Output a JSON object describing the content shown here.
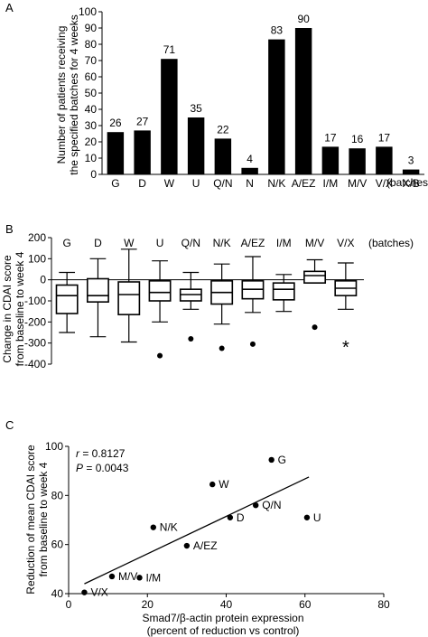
{
  "panels": {
    "a": {
      "letter": "A"
    },
    "b": {
      "letter": "B"
    },
    "c": {
      "letter": "C"
    }
  },
  "chart_data": [
    {
      "type": "bar",
      "panel": "A",
      "ylabel": "Number of patients receiving the specified batches for 4 weeks",
      "ylabel_lines": [
        "Number of patients receiving",
        "the specified batches for 4 weeks"
      ],
      "xlabel": "(batches)",
      "categories": [
        "G",
        "D",
        "W",
        "U",
        "Q/N",
        "N",
        "N/K",
        "A/EZ",
        "I/M",
        "M/V",
        "V/X",
        "X/B"
      ],
      "values": [
        26,
        27,
        71,
        35,
        22,
        4,
        83,
        90,
        17,
        16,
        17,
        3
      ],
      "data_labels": [
        "26",
        "27",
        "71",
        "35",
        "22",
        "4",
        "83",
        "90",
        "17",
        "16",
        "17",
        "3"
      ],
      "ylim": [
        0,
        100
      ],
      "yticks": [
        "0",
        "10",
        "20",
        "30",
        "40",
        "50",
        "60",
        "70",
        "80",
        "90",
        "100"
      ],
      "bar_color": "#000000",
      "grid": false
    },
    {
      "type": "box",
      "panel": "B",
      "ylabel": "Change in CDAI score from baseline to week 4",
      "ylabel_lines": [
        "Change in CDAI score",
        "from baseline to week 4"
      ],
      "xlabel": "(batches)",
      "categories": [
        "G",
        "D",
        "W",
        "U",
        "Q/N",
        "N/K",
        "A/EZ",
        "I/M",
        "M/V",
        "V/X"
      ],
      "boxes": [
        {
          "min": -250,
          "q1": -160,
          "median": -75,
          "q3": -25,
          "max": 35,
          "outliers": []
        },
        {
          "min": -270,
          "q1": -105,
          "median": -75,
          "q3": 5,
          "max": 100,
          "outliers": []
        },
        {
          "min": -295,
          "q1": -165,
          "median": -70,
          "q3": -10,
          "max": 145,
          "outliers": []
        },
        {
          "min": -200,
          "q1": -100,
          "median": -60,
          "q3": -5,
          "max": 90,
          "outliers": [
            -360
          ]
        },
        {
          "min": -140,
          "q1": -100,
          "median": -70,
          "q3": -45,
          "max": 35,
          "outliers": [
            -280
          ]
        },
        {
          "min": -210,
          "q1": -115,
          "median": -60,
          "q3": -5,
          "max": 75,
          "outliers": [
            -325
          ]
        },
        {
          "min": -155,
          "q1": -90,
          "median": -45,
          "q3": -5,
          "max": 110,
          "outliers": [
            -305
          ]
        },
        {
          "min": -150,
          "q1": -95,
          "median": -45,
          "q3": -15,
          "max": 25,
          "outliers": []
        },
        {
          "min": -15,
          "q1": -15,
          "median": 20,
          "q3": 40,
          "max": 95,
          "outliers": [
            -225
          ]
        },
        {
          "min": -140,
          "q1": -75,
          "median": -40,
          "q3": -5,
          "max": 80,
          "outliers": []
        }
      ],
      "annotations": [
        {
          "category": "V/X",
          "text": "*"
        }
      ],
      "ylim": [
        -400,
        200
      ],
      "yticks": [
        "-400",
        "-300",
        "-200",
        "-100",
        "0",
        "100",
        "200"
      ],
      "zero_line": true,
      "grid": false
    },
    {
      "type": "scatter",
      "panel": "C",
      "xlabel": "Smad7/β-actin protein expression",
      "xlabel_sub": "(percent of reduction vs control)",
      "ylabel": "Reduction of mean CDAI score from baseline to week 4",
      "ylabel_lines": [
        "Reduction of mean CDAI score",
        "from baseline to week 4"
      ],
      "points": [
        {
          "label": "G",
          "x": 51.5,
          "y": 94.5
        },
        {
          "label": "W",
          "x": 36.5,
          "y": 84.5
        },
        {
          "label": "Q/N",
          "x": 47.5,
          "y": 76
        },
        {
          "label": "D",
          "x": 41,
          "y": 71
        },
        {
          "label": "U",
          "x": 60.5,
          "y": 71
        },
        {
          "label": "N/K",
          "x": 21.5,
          "y": 67
        },
        {
          "label": "A/EZ",
          "x": 30,
          "y": 59.5
        },
        {
          "label": "M/V",
          "x": 11,
          "y": 47
        },
        {
          "label": "I/M",
          "x": 18,
          "y": 46.5
        },
        {
          "label": "V/X",
          "x": 4,
          "y": 40.5
        }
      ],
      "fit_line": {
        "x": [
          4,
          61
        ],
        "y": [
          44,
          87.5
        ]
      },
      "stats": {
        "r_label": "r",
        "r_value": " = 0.8127",
        "p_label": "P",
        "p_value": " = 0.0043"
      },
      "xlim": [
        0,
        80
      ],
      "ylim": [
        40,
        100
      ],
      "xticks": [
        "0",
        "20",
        "40",
        "60",
        "80"
      ],
      "yticks": [
        "40",
        "60",
        "80",
        "100"
      ],
      "grid": false
    }
  ]
}
